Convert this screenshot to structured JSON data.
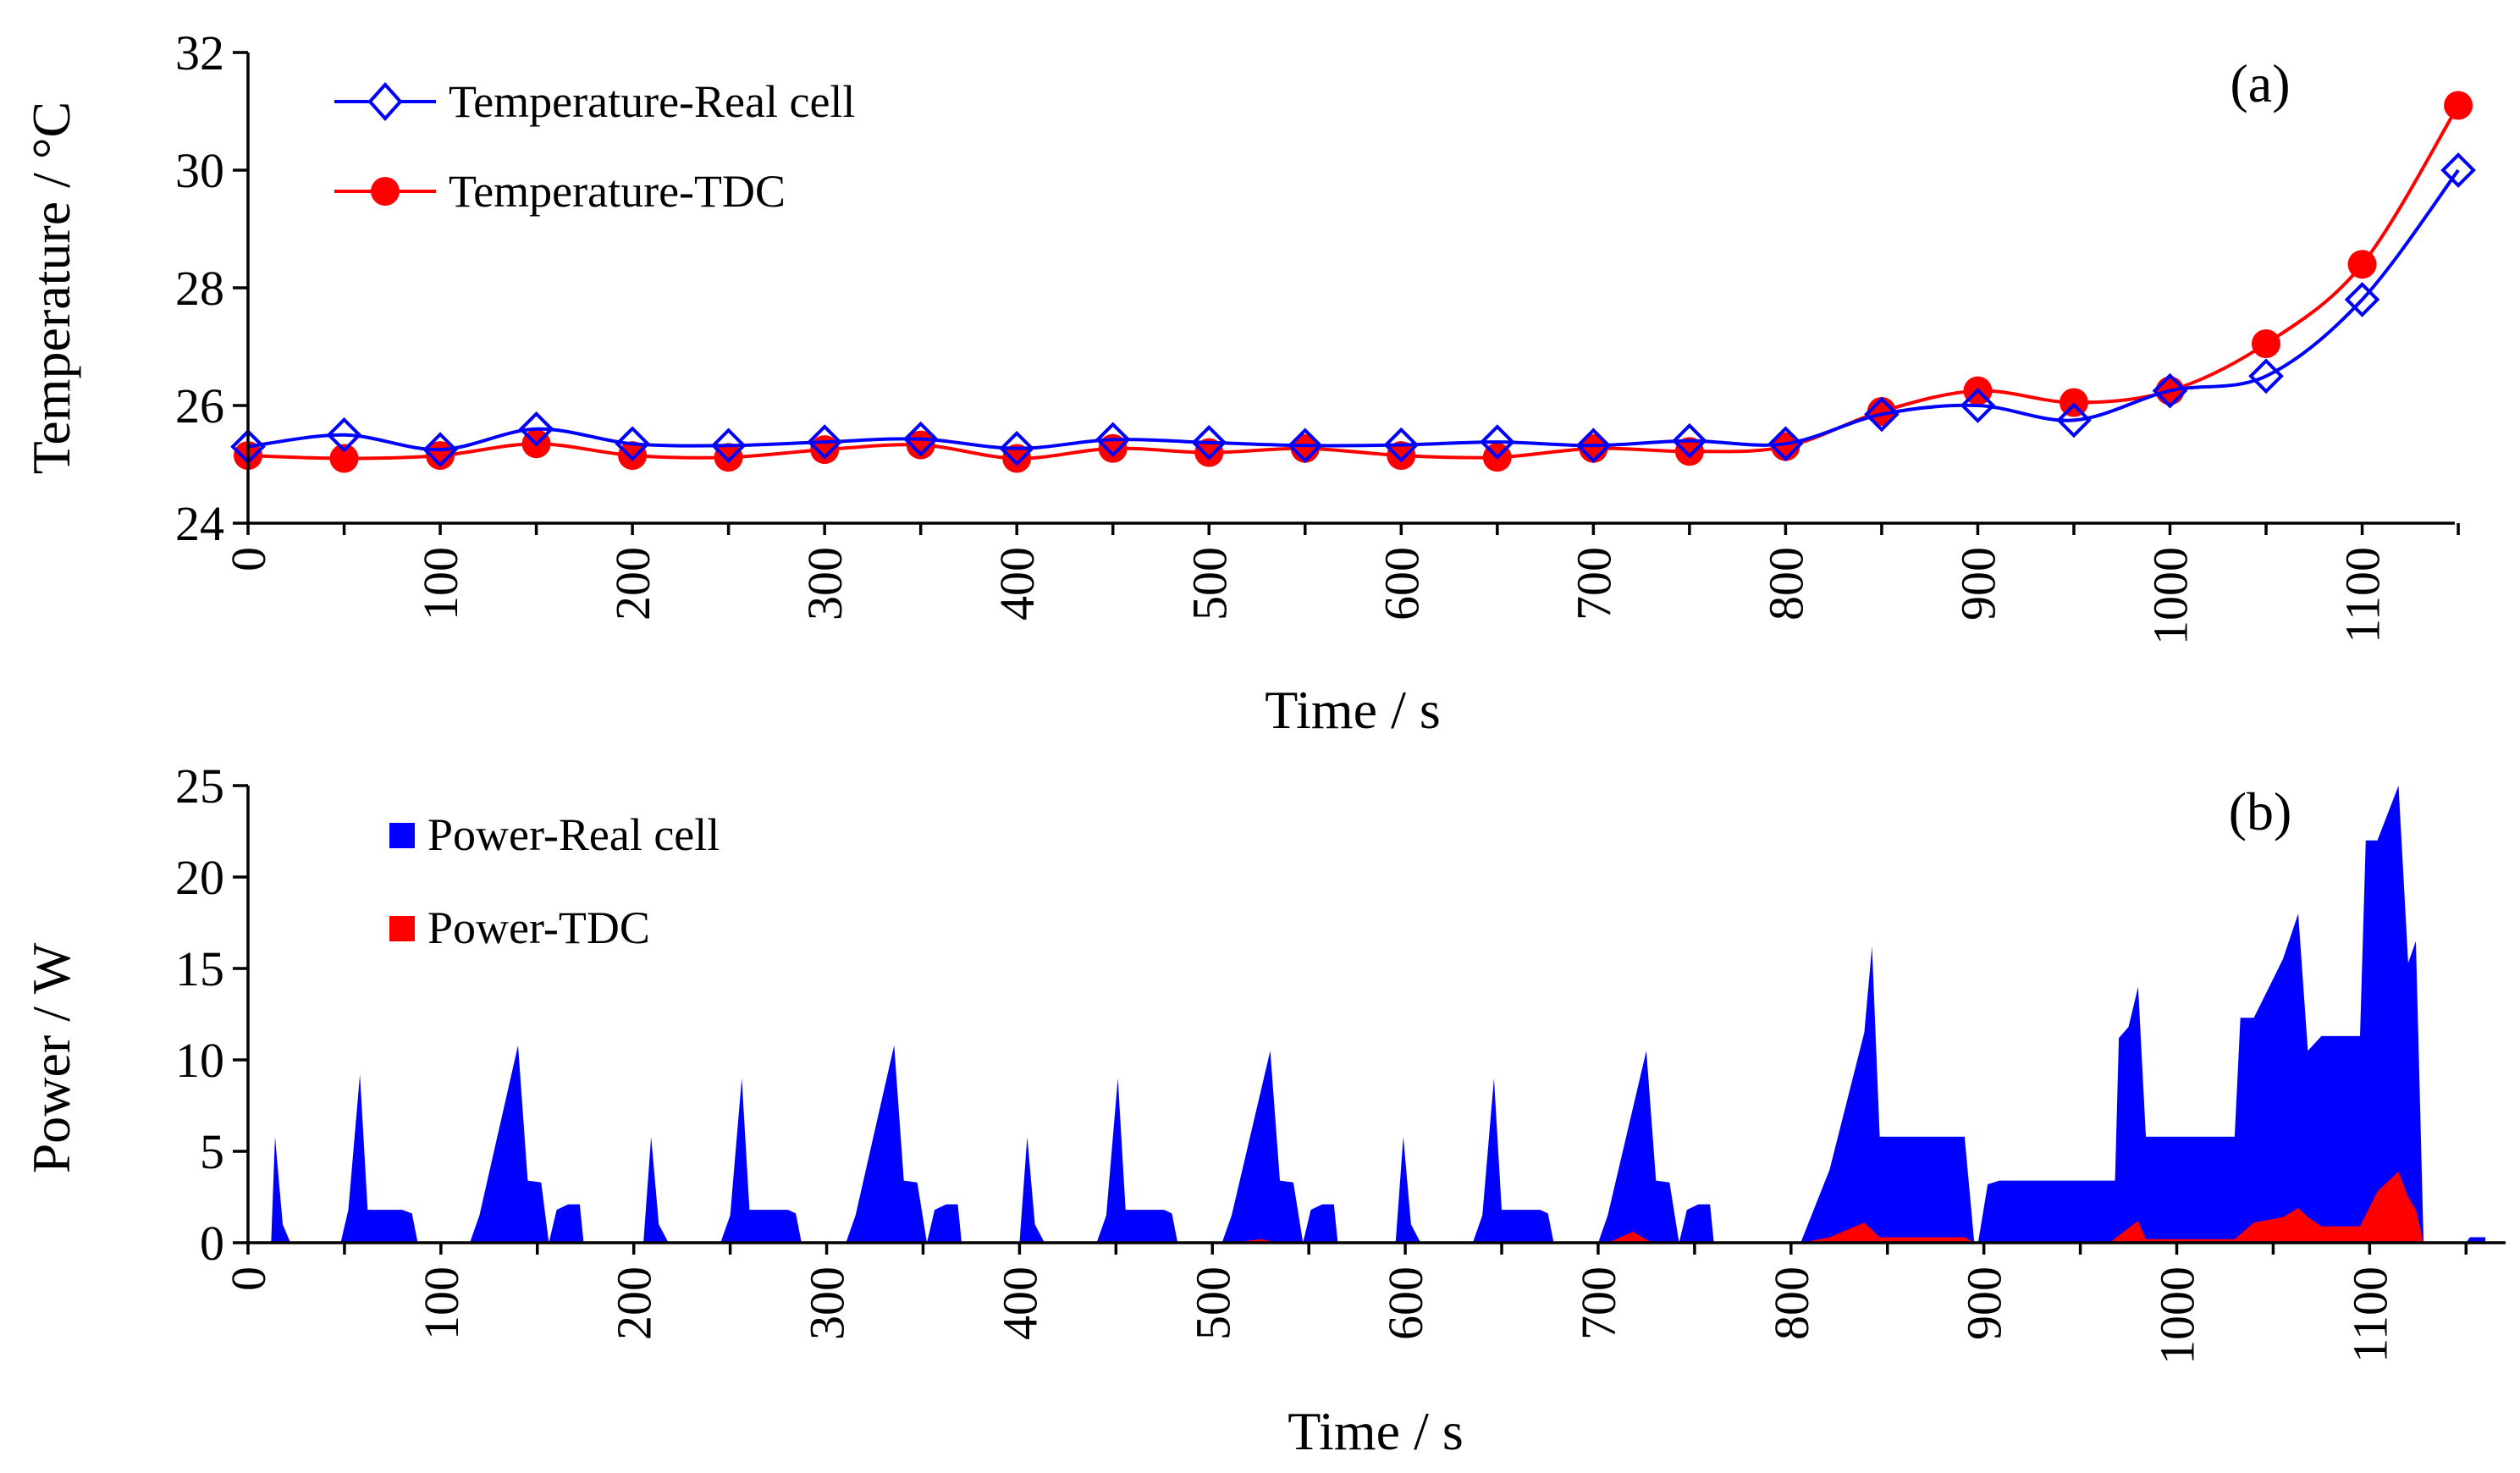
{
  "chart_data": [
    {
      "type": "line",
      "panel_label": "(a)",
      "xlabel": "Time / s",
      "ylabel": "Temperature / °C",
      "xlim": [
        0,
        1150
      ],
      "ylim": [
        24,
        32
      ],
      "xticks": [
        0,
        100,
        200,
        300,
        400,
        500,
        600,
        700,
        800,
        900,
        1000,
        1100
      ],
      "yticks": [
        24,
        26,
        28,
        30,
        32
      ],
      "legend_position": "top-left",
      "x": [
        0,
        50,
        100,
        150,
        200,
        250,
        300,
        350,
        400,
        450,
        500,
        550,
        600,
        650,
        700,
        750,
        800,
        850,
        900,
        950,
        1000,
        1050,
        1100,
        1150
      ],
      "series": [
        {
          "name": "Temperature-Real cell",
          "color": "#0000ff",
          "marker": "diamond-open",
          "values": [
            25.3,
            25.5,
            25.25,
            25.6,
            25.35,
            25.32,
            25.38,
            25.43,
            25.27,
            25.42,
            25.37,
            25.32,
            25.33,
            25.38,
            25.32,
            25.4,
            25.35,
            25.85,
            26.0,
            25.75,
            26.25,
            26.5,
            27.8,
            30.0
          ]
        },
        {
          "name": "Temperature-TDC",
          "color": "#ff0000",
          "marker": "circle-filled",
          "values": [
            25.15,
            25.1,
            25.15,
            25.35,
            25.15,
            25.12,
            25.25,
            25.33,
            25.1,
            25.27,
            25.2,
            25.27,
            25.15,
            25.12,
            25.27,
            25.22,
            25.3,
            25.9,
            26.25,
            26.05,
            26.25,
            27.05,
            28.4,
            31.1
          ]
        }
      ]
    },
    {
      "type": "area",
      "panel_label": "(b)",
      "xlabel": "Time / s",
      "ylabel": "Power / W",
      "xlim": [
        0,
        1170
      ],
      "ylim": [
        0,
        25
      ],
      "xticks": [
        0,
        100,
        200,
        300,
        400,
        500,
        600,
        700,
        800,
        900,
        1000,
        1100
      ],
      "yticks": [
        0,
        5,
        10,
        15,
        20,
        25
      ],
      "legend_position": "top-left",
      "series": [
        {
          "name": "Power-Real cell",
          "color": "#0000ff",
          "points": [
            [
              0,
              0
            ],
            [
              12,
              0
            ],
            [
              14,
              5.8
            ],
            [
              18,
              1
            ],
            [
              22,
              0
            ],
            [
              48,
              0
            ],
            [
              52,
              1.8
            ],
            [
              58,
              9.2
            ],
            [
              62,
              1.8
            ],
            [
              80,
              1.8
            ],
            [
              85,
              1.6
            ],
            [
              88,
              0
            ],
            [
              115,
              0
            ],
            [
              120,
              1.5
            ],
            [
              140,
              10.8
            ],
            [
              145,
              3.4
            ],
            [
              152,
              3.3
            ],
            [
              156,
              0
            ],
            [
              160,
              1.8
            ],
            [
              166,
              2.1
            ],
            [
              172,
              2.1
            ],
            [
              174,
              0
            ],
            [
              205,
              0
            ],
            [
              209,
              5.8
            ],
            [
              213,
              1
            ],
            [
              218,
              0
            ],
            [
              245,
              0
            ],
            [
              250,
              1.5
            ],
            [
              256,
              9
            ],
            [
              260,
              1.8
            ],
            [
              280,
              1.8
            ],
            [
              284,
              1.6
            ],
            [
              287,
              0
            ],
            [
              310,
              0
            ],
            [
              315,
              1.5
            ],
            [
              335,
              10.8
            ],
            [
              340,
              3.4
            ],
            [
              347,
              3.3
            ],
            [
              352,
              0
            ],
            [
              356,
              1.8
            ],
            [
              362,
              2.1
            ],
            [
              368,
              2.1
            ],
            [
              370,
              0
            ],
            [
              400,
              0
            ],
            [
              404,
              5.8
            ],
            [
              408,
              1
            ],
            [
              413,
              0
            ],
            [
              440,
              0
            ],
            [
              445,
              1.5
            ],
            [
              451,
              9
            ],
            [
              455,
              1.8
            ],
            [
              475,
              1.8
            ],
            [
              479,
              1.6
            ],
            [
              482,
              0
            ],
            [
              505,
              0
            ],
            [
              510,
              1.5
            ],
            [
              530,
              10.5
            ],
            [
              535,
              3.4
            ],
            [
              542,
              3.3
            ],
            [
              547,
              0
            ],
            [
              551,
              1.8
            ],
            [
              557,
              2.1
            ],
            [
              563,
              2.1
            ],
            [
              565,
              0
            ],
            [
              595,
              0
            ],
            [
              599,
              5.8
            ],
            [
              603,
              1
            ],
            [
              608,
              0
            ],
            [
              635,
              0
            ],
            [
              640,
              1.5
            ],
            [
              646,
              9
            ],
            [
              650,
              1.8
            ],
            [
              670,
              1.8
            ],
            [
              674,
              1.6
            ],
            [
              677,
              0
            ],
            [
              700,
              0
            ],
            [
              705,
              1.5
            ],
            [
              725,
              10.5
            ],
            [
              730,
              3.4
            ],
            [
              737,
              3.3
            ],
            [
              742,
              0
            ],
            [
              746,
              1.8
            ],
            [
              752,
              2.1
            ],
            [
              758,
              2.1
            ],
            [
              760,
              0
            ],
            [
              805,
              0
            ],
            [
              820,
              4
            ],
            [
              838,
              11.5
            ],
            [
              842,
              16.2
            ],
            [
              846,
              5.8
            ],
            [
              890,
              5.8
            ],
            [
              895,
              0
            ],
            [
              897,
              0
            ],
            [
              902,
              3.2
            ],
            [
              908,
              3.4
            ],
            [
              968,
              3.4
            ],
            [
              970,
              11.2
            ],
            [
              975,
              11.8
            ],
            [
              980,
              14
            ],
            [
              984,
              5.8
            ],
            [
              1030,
              5.8
            ],
            [
              1033,
              12.3
            ],
            [
              1040,
              12.3
            ],
            [
              1055,
              15.5
            ],
            [
              1063,
              18
            ],
            [
              1068,
              10.5
            ],
            [
              1075,
              11.3
            ],
            [
              1095,
              11.3
            ],
            [
              1098,
              22
            ],
            [
              1104,
              22
            ],
            [
              1115,
              25
            ],
            [
              1120,
              15.3
            ],
            [
              1124,
              16.5
            ],
            [
              1128,
              0
            ],
            [
              1150,
              0
            ],
            [
              1152,
              0.3
            ],
            [
              1160,
              0.3
            ]
          ]
        },
        {
          "name": "Power-TDC",
          "color": "#ff0000",
          "points": [
            [
              0,
              0
            ],
            [
              510,
              0
            ],
            [
              525,
              0.2
            ],
            [
              535,
              0
            ],
            [
              705,
              0
            ],
            [
              718,
              0.6
            ],
            [
              728,
              0
            ],
            [
              805,
              0
            ],
            [
              820,
              0.3
            ],
            [
              838,
              1.1
            ],
            [
              846,
              0.3
            ],
            [
              890,
              0.3
            ],
            [
              895,
              0
            ],
            [
              965,
              0
            ],
            [
              975,
              0.8
            ],
            [
              980,
              1.2
            ],
            [
              984,
              0.2
            ],
            [
              1030,
              0.2
            ],
            [
              1040,
              1.1
            ],
            [
              1055,
              1.4
            ],
            [
              1063,
              1.9
            ],
            [
              1068,
              1.4
            ],
            [
              1075,
              0.9
            ],
            [
              1095,
              0.9
            ],
            [
              1104,
              2.8
            ],
            [
              1115,
              3.9
            ],
            [
              1120,
              2.5
            ],
            [
              1124,
              1.8
            ],
            [
              1128,
              0
            ],
            [
              1160,
              0
            ]
          ]
        }
      ]
    }
  ]
}
